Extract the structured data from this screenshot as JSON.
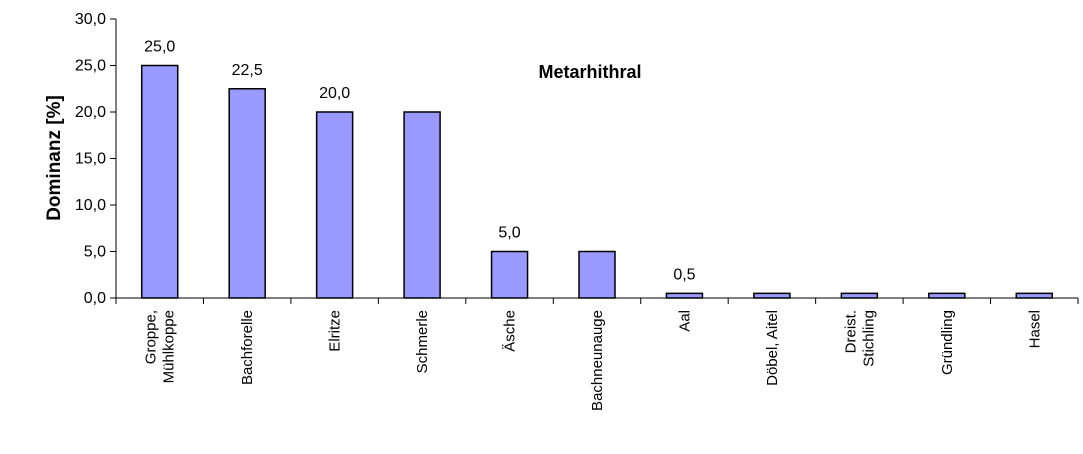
{
  "chart_data": {
    "type": "bar",
    "title": "Metarhithral",
    "ylabel": "Dominanz [%]",
    "xlabel": "",
    "ylim": [
      0,
      30
    ],
    "yticks": [
      "0,0",
      "5,0",
      "10,0",
      "15,0",
      "20,0",
      "25,0",
      "30,0"
    ],
    "grid": false,
    "bar_color": "#9999FF",
    "categories": [
      [
        "Groppe,",
        "Mühlkoppe"
      ],
      [
        "Bachforelle"
      ],
      [
        "Elritze"
      ],
      [
        "Schmerle"
      ],
      [
        "Äsche"
      ],
      [
        "Bachneunauge"
      ],
      [
        "Aal"
      ],
      [
        "Döbel, Aitel"
      ],
      [
        "Dreist.",
        "Stichling"
      ],
      [
        "Gründling"
      ],
      [
        "Hasel"
      ]
    ],
    "values": [
      25.0,
      22.5,
      20.0,
      20.0,
      5.0,
      5.0,
      0.5,
      0.5,
      0.5,
      0.5,
      0.5
    ],
    "data_labels": [
      "25,0",
      "22,5",
      "20,0",
      null,
      "5,0",
      null,
      "0,5",
      null,
      null,
      null,
      null
    ]
  }
}
